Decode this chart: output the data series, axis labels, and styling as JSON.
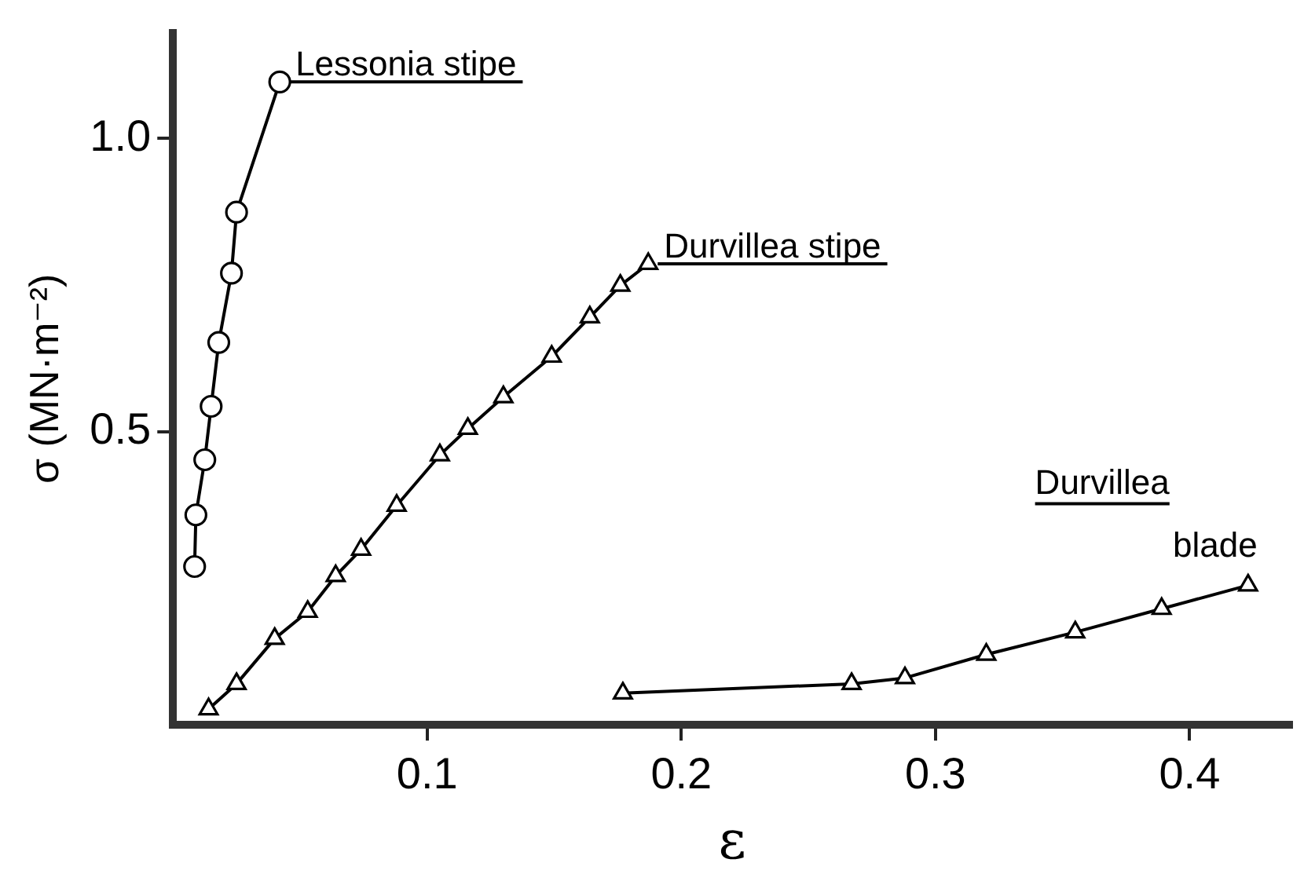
{
  "chart_data": {
    "type": "line",
    "xlabel": "ε",
    "ylabel": "σ (MN·m⁻²)",
    "xlim": [
      0,
      0.44
    ],
    "ylim": [
      0,
      1.18
    ],
    "xticks": [
      0.1,
      0.2,
      0.3,
      0.4
    ],
    "yticks": [
      {
        "value": 0.5,
        "label": "0.5"
      },
      {
        "value": 1,
        "label": "1.0"
      }
    ],
    "grid": false,
    "legend": false,
    "line_style": "solid",
    "series": [
      {
        "name": "Lessonia stipe",
        "color": "#000000",
        "marker": "circle",
        "x": [
          0.0085,
          0.009,
          0.0125,
          0.015,
          0.018,
          0.023,
          0.025,
          0.042
        ],
        "values": [
          0.27,
          0.358,
          0.452,
          0.543,
          0.652,
          0.77,
          0.874,
          1.096
        ]
      },
      {
        "name": "Durvillea stipe",
        "color": "#000000",
        "marker": "triangle",
        "x": [
          0.014,
          0.025,
          0.04,
          0.053,
          0.064,
          0.074,
          0.088,
          0.105,
          0.116,
          0.13,
          0.149,
          0.164,
          0.176,
          0.187
        ],
        "values": [
          0.027,
          0.07,
          0.147,
          0.193,
          0.254,
          0.299,
          0.374,
          0.46,
          0.505,
          0.559,
          0.628,
          0.695,
          0.749,
          0.786
        ]
      },
      {
        "name": "Durvillea blade",
        "color": "#000000",
        "marker": "triangle",
        "x": [
          0.177,
          0.267,
          0.288,
          0.32,
          0.355,
          0.389,
          0.423
        ],
        "values": [
          0.054,
          0.07,
          0.08,
          0.12,
          0.158,
          0.198,
          0.238
        ]
      }
    ]
  }
}
